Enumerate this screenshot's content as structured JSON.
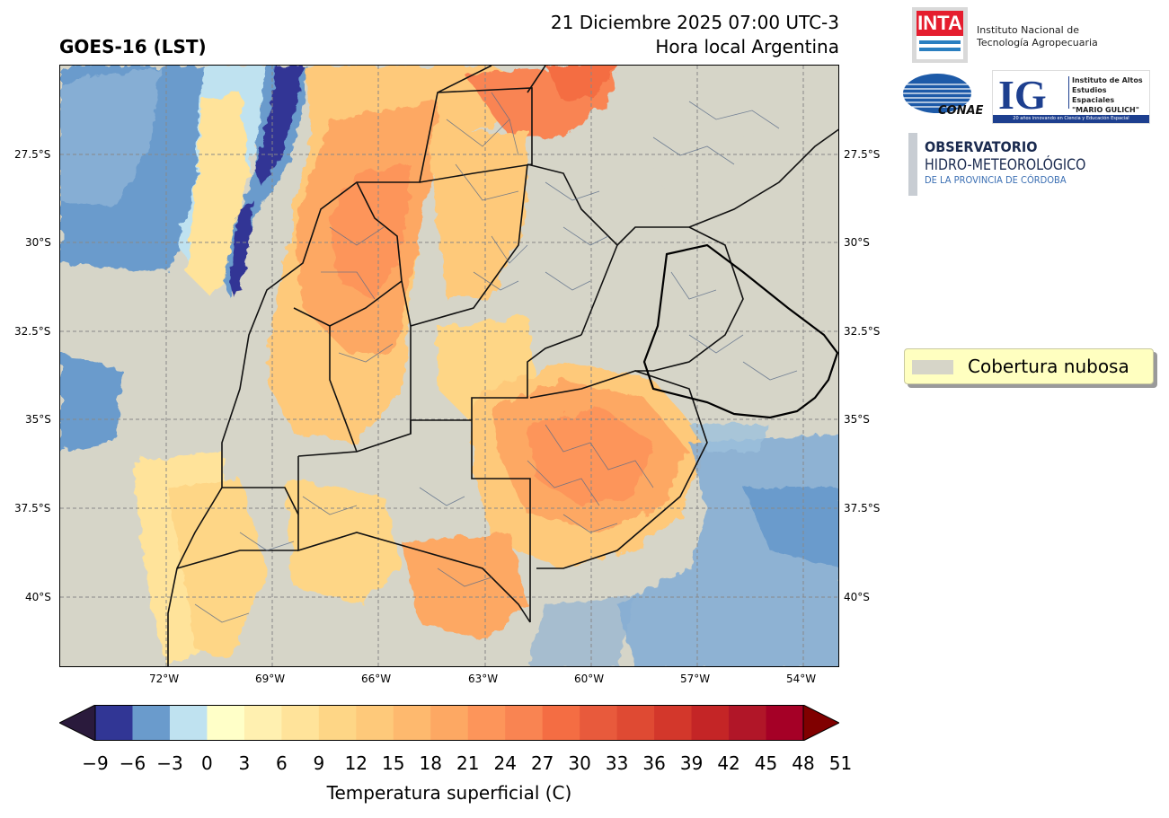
{
  "header": {
    "left_title": "GOES-16 (LST)",
    "date_line": "21 Diciembre 2025 07:00 UTC-3",
    "local_line": "Hora local Argentina"
  },
  "map": {
    "lat_labels": [
      "27.5°S",
      "30°S",
      "32.5°S",
      "35°S",
      "37.5°S",
      "40°S"
    ],
    "lon_labels": [
      "72°W",
      "69°W",
      "66°W",
      "63°W",
      "60°W",
      "57°W",
      "54°W"
    ],
    "cloud_color": "#d6d5c8"
  },
  "colorbar": {
    "ticks": [
      "−9",
      "−6",
      "−3",
      "0",
      "3",
      "6",
      "9",
      "12",
      "15",
      "18",
      "21",
      "24",
      "27",
      "30",
      "33",
      "36",
      "39",
      "42",
      "45",
      "48",
      "51"
    ],
    "colors": [
      "#313695",
      "#6a9bcc",
      "#bfe2f0",
      "#ffffc8",
      "#fff0b0",
      "#ffe39a",
      "#fed686",
      "#fec97a",
      "#feb96e",
      "#fda863",
      "#fd955a",
      "#f98452",
      "#f46d43",
      "#e85a3c",
      "#df4a33",
      "#d3372b",
      "#c42526",
      "#b11628",
      "#a50026"
    ],
    "under_color": "#2a1a3c",
    "over_color": "#800000",
    "label": "Temperatura superficial (C)"
  },
  "legend": {
    "label": "Cobertura nubosa"
  },
  "logos": {
    "inta": "INTA",
    "inta_name_1": "Instituto Nacional de",
    "inta_name_2": "Tecnología Agropecuaria",
    "conae": "CONAE",
    "ig": "IG",
    "ig_line_1": "Instituto de Altos",
    "ig_line_2": "Estudios Espaciales",
    "ig_line_3": "\"MARIO GULICH\"",
    "ig_tagline": "20 años innovando en Ciencia y Educación Espacial",
    "obs_line_1": "OBSERVATORIO",
    "obs_line_2": "HIDRO-METEOROLÓGICO",
    "obs_line_3": "DE LA PROVINCIA DE CÓRDOBA"
  }
}
